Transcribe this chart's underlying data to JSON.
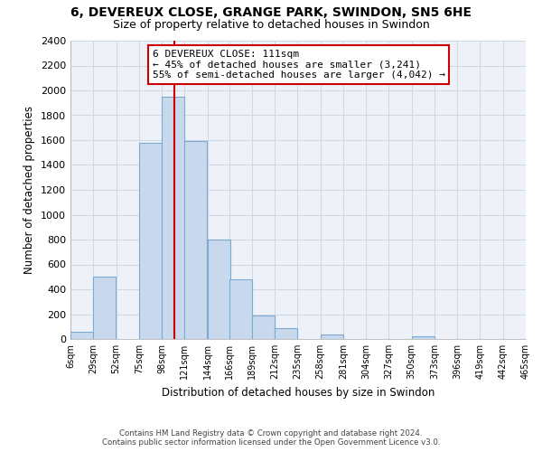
{
  "title_line1": "6, DEVEREUX CLOSE, GRANGE PARK, SWINDON, SN5 6HE",
  "title_line2": "Size of property relative to detached houses in Swindon",
  "xlabel": "Distribution of detached houses by size in Swindon",
  "ylabel": "Number of detached properties",
  "bar_left_edges": [
    6,
    29,
    52,
    75,
    98,
    121,
    144,
    166,
    189,
    212,
    235,
    258,
    281,
    304,
    327,
    350,
    373,
    396,
    419,
    442
  ],
  "bar_heights": [
    55,
    500,
    0,
    1575,
    1950,
    1590,
    800,
    480,
    190,
    90,
    0,
    35,
    0,
    0,
    0,
    20,
    0,
    0,
    0,
    0
  ],
  "bin_width": 23,
  "bar_color": "#c8d9ee",
  "bar_edgecolor": "#7aaad0",
  "property_line_x": 111,
  "property_line_color": "#cc0000",
  "annotation_text_line1": "6 DEVEREUX CLOSE: 111sqm",
  "annotation_text_line2": "← 45% of detached houses are smaller (3,241)",
  "annotation_text_line3": "55% of semi-detached houses are larger (4,042) →",
  "ylim": [
    0,
    2400
  ],
  "yticks": [
    0,
    200,
    400,
    600,
    800,
    1000,
    1200,
    1400,
    1600,
    1800,
    2000,
    2200,
    2400
  ],
  "xtick_labels": [
    "6sqm",
    "29sqm",
    "52sqm",
    "75sqm",
    "98sqm",
    "121sqm",
    "144sqm",
    "166sqm",
    "189sqm",
    "212sqm",
    "235sqm",
    "258sqm",
    "281sqm",
    "304sqm",
    "327sqm",
    "350sqm",
    "373sqm",
    "396sqm",
    "419sqm",
    "442sqm",
    "465sqm"
  ],
  "xtick_positions": [
    6,
    29,
    52,
    75,
    98,
    121,
    144,
    166,
    189,
    212,
    235,
    258,
    281,
    304,
    327,
    350,
    373,
    396,
    419,
    442,
    465
  ],
  "footer_line1": "Contains HM Land Registry data © Crown copyright and database right 2024.",
  "footer_line2": "Contains public sector information licensed under the Open Government Licence v3.0.",
  "grid_color": "#d0d8e8",
  "plot_bg_color": "#eef2f8",
  "background_color": "#ffffff",
  "annotation_box_facecolor": "#ffffff",
  "annotation_box_edgecolor": "#cc0000",
  "xlim_left": 6,
  "xlim_right": 465
}
